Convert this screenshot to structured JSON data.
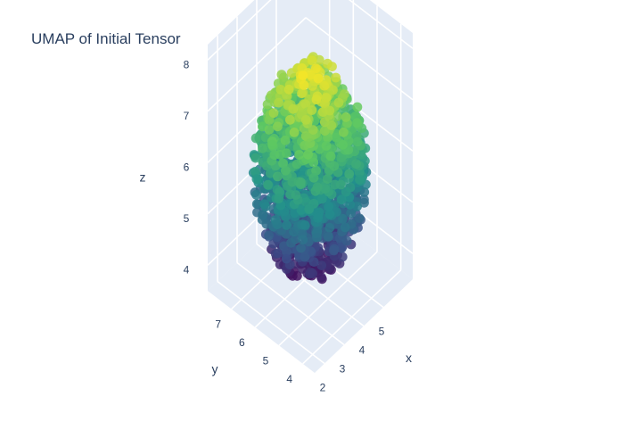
{
  "chart_data": {
    "type": "scatter",
    "title": "UMAP of Initial Tensor",
    "xlabel": "x",
    "ylabel": "y",
    "zlabel": "z",
    "xlim": [
      1.5,
      6.5
    ],
    "ylim": [
      3.5,
      8
    ],
    "zlim": [
      3.5,
      8.3
    ],
    "x_ticks": [
      "2",
      "3",
      "4",
      "5"
    ],
    "y_ticks": [
      "4",
      "5",
      "6",
      "7"
    ],
    "z_ticks": [
      "4",
      "5",
      "6",
      "7",
      "8"
    ],
    "colorscale": "Viridis",
    "colors": [
      "#440154",
      "#3b528b",
      "#21918c",
      "#5ec962",
      "#fde725"
    ],
    "color_by": "z",
    "grid": true,
    "legend": "none",
    "point_count_estimate": 1500,
    "cluster": {
      "x_range": [
        1.8,
        5.8
      ],
      "y_range": [
        3.8,
        7.4
      ],
      "z_range": [
        3.9,
        7.9
      ],
      "shape": "roughly spherical blob"
    }
  }
}
